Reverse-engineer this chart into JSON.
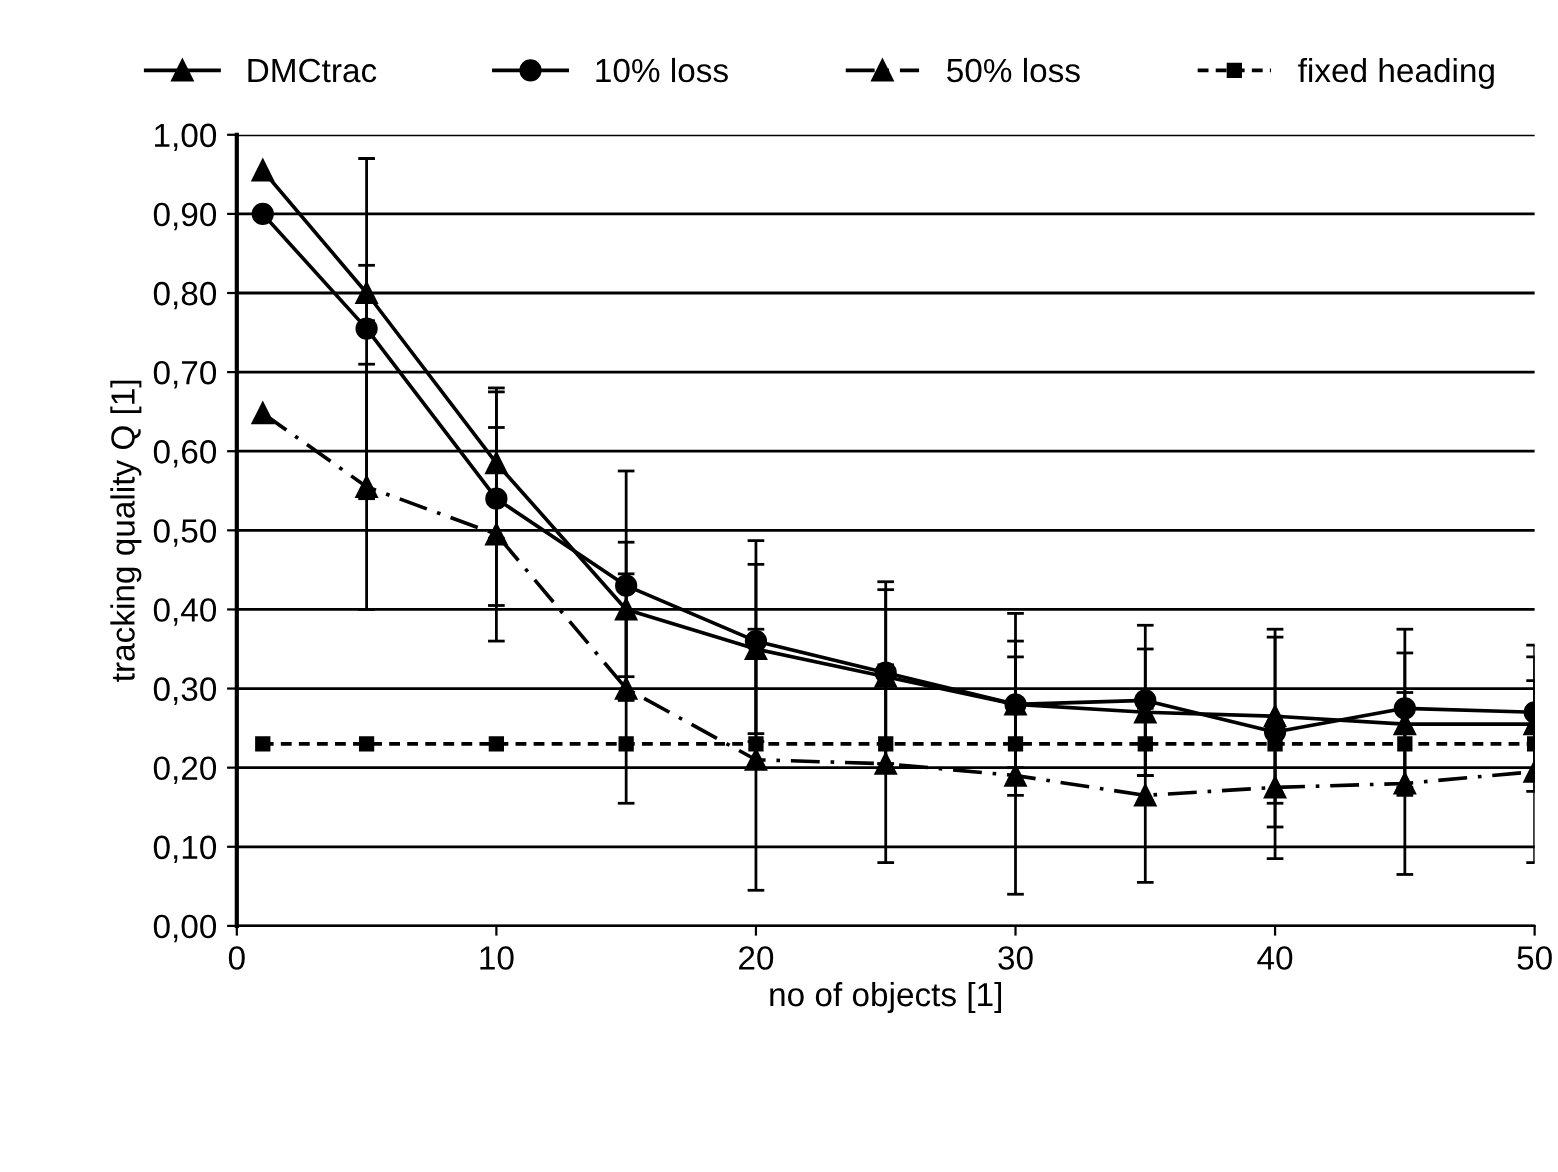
{
  "chart_data": {
    "type": "line",
    "xlabel": "no of objects [1]",
    "ylabel": "tracking quality Q [1]",
    "xlim": [
      0,
      50
    ],
    "xticks": [
      0,
      10,
      20,
      30,
      40,
      50
    ],
    "ylim": [
      0,
      1
    ],
    "yticks": [
      {
        "value": 0,
        "label": "0,00"
      },
      {
        "value": 0.1,
        "label": "0,10"
      },
      {
        "value": 0.2,
        "label": "0,20"
      },
      {
        "value": 0.3,
        "label": "0,30"
      },
      {
        "value": 0.4,
        "label": "0,40"
      },
      {
        "value": 0.5,
        "label": "0,50"
      },
      {
        "value": 0.6,
        "label": "0,60"
      },
      {
        "value": 0.7,
        "label": "0,70"
      },
      {
        "value": 0.8,
        "label": "0,80"
      },
      {
        "value": 0.9,
        "label": "0,90"
      },
      {
        "value": 1.0,
        "label": "1,00"
      }
    ],
    "grid": "y",
    "legend": "top",
    "x": [
      1,
      5,
      10,
      15,
      20,
      25,
      30,
      35,
      40,
      45,
      50
    ],
    "series": [
      {
        "name": "DMCtrac",
        "color": "#000000",
        "marker": "triangle",
        "line_style": "solid",
        "values": [
          0.955,
          0.8,
          0.585,
          0.4,
          0.35,
          0.315,
          0.28,
          0.27,
          0.265,
          0.255,
          0.255
        ],
        "errors": [
          null,
          0.035,
          0.095,
          0.085,
          0.107,
          0.11,
          0.08,
          0.08,
          0.11,
          0.09,
          0.085
        ]
      },
      {
        "name": "10% loss",
        "color": "#000000",
        "marker": "circle",
        "line_style": "solid",
        "values": [
          0.9,
          0.755,
          0.54,
          0.43,
          0.36,
          0.32,
          0.28,
          0.285,
          0.245,
          0.275,
          0.27
        ],
        "errors": [
          null,
          0.215,
          0.135,
          0.145,
          0.127,
          0.115,
          0.115,
          0.095,
          0.12,
          0.1,
          0.085
        ]
      },
      {
        "name": "50% loss",
        "color": "#000000",
        "marker": "triangle",
        "line_style": "dashdot",
        "values": [
          0.648,
          0.555,
          0.495,
          0.3,
          0.21,
          0.205,
          0.19,
          0.165,
          0.175,
          0.18,
          0.195
        ],
        "errors": [
          null,
          0.155,
          0.135,
          0.145,
          0.165,
          0.125,
          0.15,
          0.11,
          0.09,
          0.115,
          0.115
        ]
      },
      {
        "name": "fixed heading",
        "color": "#000000",
        "marker": "square",
        "line_style": "dashed",
        "values": [
          0.23,
          0.23,
          0.23,
          0.23,
          0.23,
          0.23,
          0.23,
          0.23,
          0.23,
          0.23,
          0.23
        ]
      }
    ]
  }
}
